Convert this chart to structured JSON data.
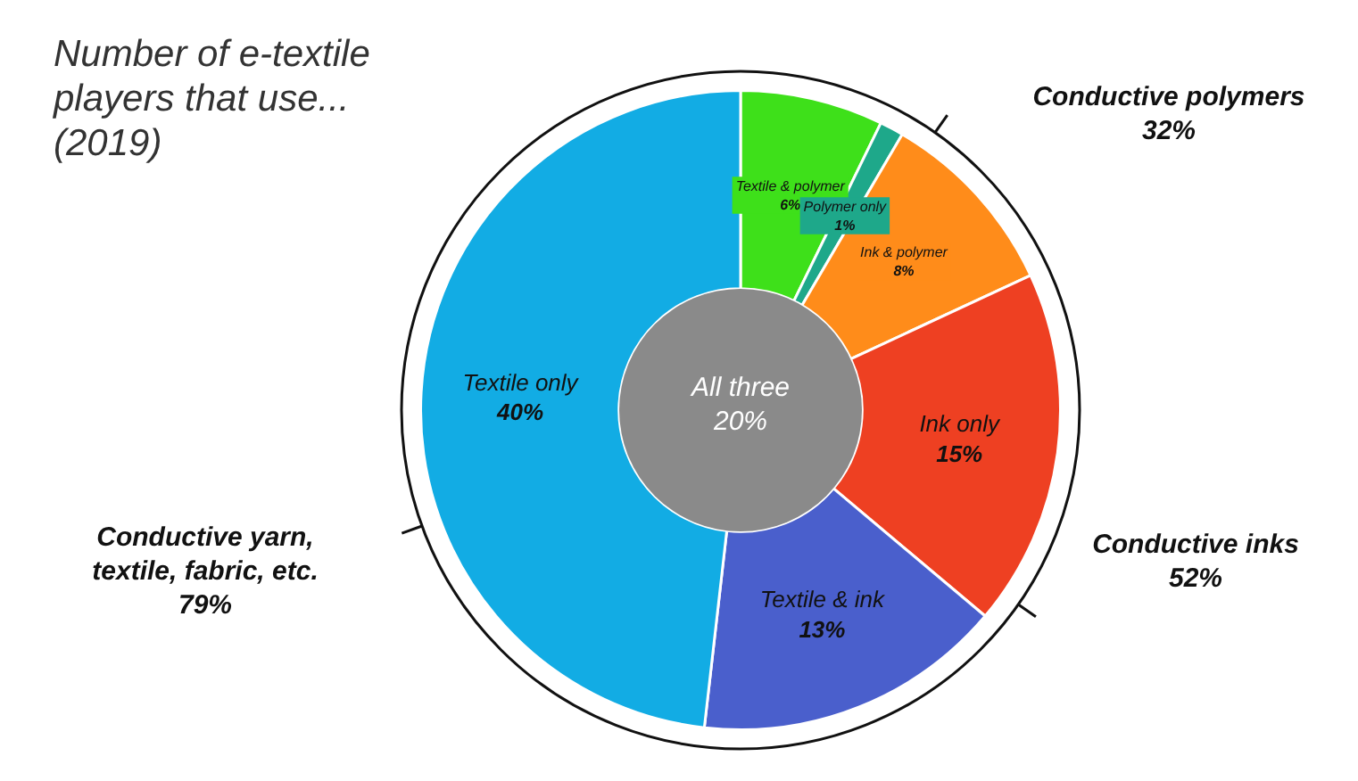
{
  "chart_data": {
    "type": "donut",
    "title": "Number of e-textile players that use... (2019)",
    "categories": [
      "Textile & polymer",
      "Polymer only",
      "Ink & polymer",
      "Ink only",
      "Textile & ink",
      "Textile only"
    ],
    "values": [
      6,
      1,
      8,
      15,
      13,
      40
    ],
    "colors": [
      "#3ee01a",
      "#1ea88a",
      "#ff8c1a",
      "#ee4022",
      "#4a5fcc",
      "#12ace4"
    ],
    "value_labels": [
      "6%",
      "1%",
      "8%",
      "15%",
      "13%",
      "40%"
    ],
    "annotations": [
      "All three\n20%",
      "Conductive polymers\n32%",
      "Conductive inks\n52%",
      "Conductive yarn,\ntextile, fabric, etc.\n79%"
    ]
  }
}
